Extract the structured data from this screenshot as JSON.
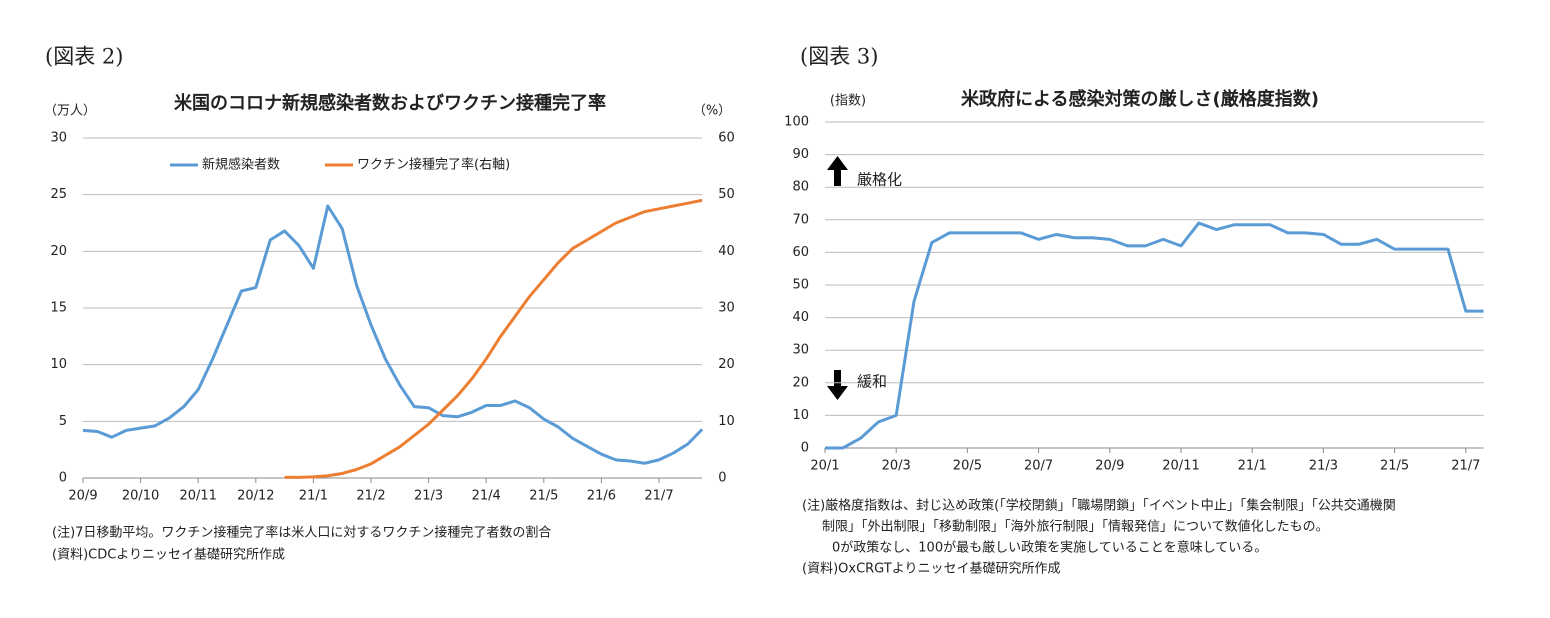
{
  "chart_data": [
    {
      "type": "line",
      "figure_label": "(図表 2)",
      "title": "米国のコロナ新規感染者数およびワクチン接種完了率",
      "y_label": "（万人）",
      "y2_label": "（%）",
      "categories": [
        "20/9",
        null,
        null,
        null,
        "20/10",
        null,
        null,
        null,
        "20/11",
        null,
        null,
        null,
        "20/12",
        null,
        null,
        null,
        "21/1",
        null,
        null,
        null,
        "21/2",
        null,
        null,
        null,
        "21/3",
        null,
        null,
        null,
        "21/4",
        null,
        null,
        null,
        "21/5",
        null,
        null,
        null,
        "21/6",
        null,
        null,
        null,
        "21/7",
        null,
        null,
        null
      ],
      "series": [
        {
          "name": "新規感染者数",
          "color": "#5b9bd5",
          "values": [
            4.2,
            4.1,
            3.6,
            4.2,
            4.4,
            4.6,
            5.3,
            6.3,
            7.8,
            10.5,
            13.5,
            16.5,
            16.8,
            21.0,
            21.8,
            20.5,
            18.5,
            24.0,
            22.0,
            17.0,
            13.5,
            10.5,
            8.2,
            6.3,
            6.2,
            5.5,
            5.4,
            5.8,
            6.4,
            6.4,
            6.8,
            6.2,
            5.2,
            4.5,
            3.5,
            2.8,
            2.1,
            1.6,
            1.5,
            1.3,
            1.6,
            2.2,
            3.0,
            4.3
          ]
        },
        {
          "name": "ワクチン接種完了率(右軸)",
          "color": "#ed7d31",
          "axis": "y2",
          "values": [
            null,
            null,
            null,
            null,
            null,
            null,
            null,
            null,
            null,
            null,
            null,
            null,
            null,
            null,
            0.1,
            0.1,
            0.2,
            0.4,
            0.8,
            1.5,
            2.5,
            4.0,
            5.5,
            7.5,
            9.5,
            12,
            14.5,
            17.5,
            21,
            25,
            28.5,
            32,
            35,
            38,
            40.5,
            42,
            43.5,
            45,
            46,
            47,
            47.5,
            48,
            48.5,
            49
          ]
        }
      ],
      "ylim": [
        0,
        30
      ],
      "yticks": [
        0,
        5,
        10,
        15,
        20,
        25,
        30
      ],
      "y2lim": [
        0,
        60
      ],
      "y2ticks": [
        0,
        10,
        20,
        30,
        40,
        50,
        60
      ],
      "grid": true,
      "legend": "top",
      "notes": [
        "(注)7日移動平均。ワクチン接種完了率は米人口に対するワクチン接種完了者数の割合",
        "(資料)CDCよりニッセイ基礎研究所作成"
      ]
    },
    {
      "type": "line",
      "figure_label": "(図表 3)",
      "title": "米政府による感染対策の厳しさ(厳格度指数)",
      "y_label": "(指数)",
      "categories": [
        "20/1",
        null,
        null,
        null,
        "20/3",
        null,
        null,
        null,
        "20/5",
        null,
        null,
        null,
        "20/7",
        null,
        null,
        null,
        "20/9",
        null,
        null,
        null,
        "20/11",
        null,
        null,
        null,
        "21/1",
        null,
        null,
        null,
        "21/3",
        null,
        null,
        null,
        "21/5",
        null,
        null,
        null,
        "21/7",
        null
      ],
      "series": [
        {
          "color": "#5b9bd5",
          "values": [
            0,
            0,
            3,
            8,
            10,
            45,
            63,
            66,
            66,
            66,
            66,
            66,
            64,
            65.5,
            64.5,
            64.5,
            64,
            62,
            62,
            64,
            62,
            69,
            67,
            68.5,
            68.5,
            68.5,
            66,
            66,
            65.5,
            62.5,
            62.5,
            64,
            61,
            61,
            61,
            61,
            42,
            42
          ]
        }
      ],
      "ylim": [
        0,
        100
      ],
      "yticks": [
        0,
        10,
        20,
        30,
        40,
        50,
        60,
        70,
        80,
        90,
        100
      ],
      "grid": true,
      "annotations": [
        "厳格化",
        "緩和"
      ],
      "notes": [
        "(注)厳格度指数は、封じ込め政策(「学校閉鎖」「職場閉鎖」「イベント中止」「集会制限」「公共交通機関",
        "制限」「外出制限」「移動制限」「海外旅行制限」「情報発信」について数値化したもの。",
        "0が政策なし、100が最も厳しい政策を実施していることを意味している。",
        "(資料)OxCRGTよりニッセイ基礎研究所作成"
      ]
    }
  ]
}
